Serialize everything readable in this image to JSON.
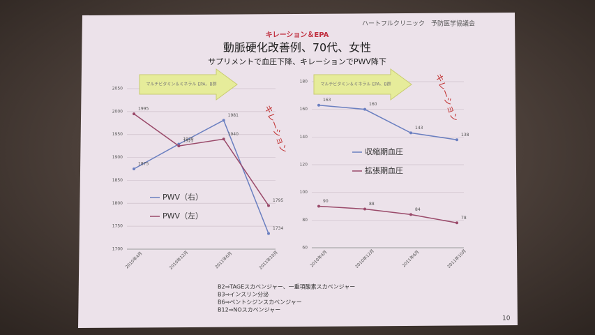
{
  "header": {
    "clinic": "ハートフルクリニック　予防医学協議会",
    "kicker": "キレーション＆EPA",
    "title": "動脈硬化改善例、70代、女性",
    "subtitle": "サプリメントで血圧下降、キレーションでPWV降下"
  },
  "notes": [
    "B2⇒TAGEスカベンジャー、一重項酸素スカベンジャー",
    "B3⇒インスリン分泌",
    "B6⇒ペントシジンスカベンジャー",
    "B12⇒NOスカベンジャー"
  ],
  "page_number": "10",
  "chart_data": [
    {
      "type": "line",
      "categories": [
        "2010年4月",
        "2010年12月",
        "2011年6月",
        "2011年10月"
      ],
      "series": [
        {
          "name": "PWV（右）",
          "color": "#6a7fc0",
          "values": [
            1875,
            1929,
            1981,
            1734
          ]
        },
        {
          "name": "PWV（左）",
          "color": "#9a4a6a",
          "values": [
            1995,
            1925,
            1940,
            1795
          ]
        }
      ],
      "ylim": [
        1700,
        2050
      ],
      "yticks": [
        1700,
        1750,
        1800,
        1850,
        1900,
        1950,
        2000,
        2050
      ],
      "grid": true,
      "annotations": [
        "マルチビタミン＆ミネラル EPA、B群",
        "キレーション"
      ]
    },
    {
      "type": "line",
      "categories": [
        "2010年4月",
        "2010年12月",
        "2011年6月",
        "2011年10月"
      ],
      "series": [
        {
          "name": "収縮期血圧",
          "color": "#6a7fc0",
          "values": [
            163,
            160,
            143,
            138
          ]
        },
        {
          "name": "拡張期血圧",
          "color": "#9a4a6a",
          "values": [
            90,
            88,
            84,
            78
          ]
        }
      ],
      "ylim": [
        60,
        180
      ],
      "yticks": [
        60,
        80,
        100,
        120,
        140,
        160,
        180
      ],
      "grid": true,
      "annotations": [
        "マルチビタミン＆ミネラル EPA、B群",
        "キレーション"
      ]
    }
  ]
}
